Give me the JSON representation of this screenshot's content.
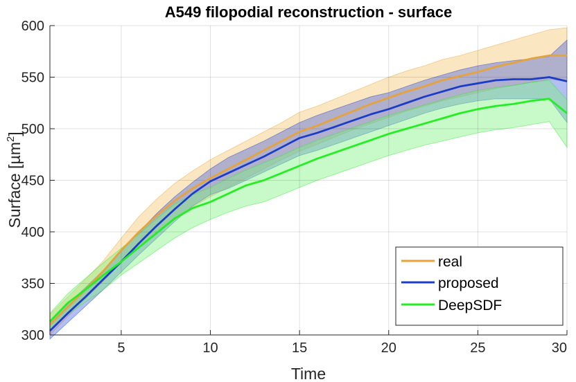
{
  "chart_data": {
    "type": "line",
    "title": "A549 filopodial reconstruction - surface",
    "xlabel": "Time",
    "ylabel_main": "Surface [µm",
    "ylabel_sup": "2",
    "ylabel_close": "]",
    "xlim": [
      1,
      30
    ],
    "ylim": [
      300,
      600
    ],
    "xticks": [
      5,
      10,
      15,
      20,
      25,
      30
    ],
    "yticks": [
      300,
      350,
      400,
      450,
      500,
      550,
      600
    ],
    "grid": true,
    "legend_position": "bottom-right",
    "x": [
      1,
      2,
      3,
      4,
      5,
      6,
      7,
      8,
      9,
      10,
      11,
      12,
      13,
      14,
      15,
      16,
      17,
      18,
      19,
      20,
      21,
      22,
      23,
      24,
      25,
      26,
      27,
      28,
      29,
      30
    ],
    "series": [
      {
        "name": "real",
        "color": "#E6A33C",
        "fill": "#F2C469",
        "values": [
          310,
          327,
          344,
          362,
          382,
          400,
          416,
          430,
          442,
          452,
          461,
          470,
          479,
          488,
          497,
          503,
          510,
          517,
          524,
          530,
          536,
          541,
          547,
          551,
          555,
          560,
          564,
          568,
          571,
          571
        ],
        "lower": [
          300,
          318,
          335,
          352,
          370,
          385,
          398,
          412,
          424,
          434,
          443,
          452,
          461,
          470,
          478,
          485,
          492,
          499,
          505,
          511,
          517,
          522,
          527,
          531,
          535,
          539,
          542,
          545,
          548,
          546
        ],
        "upper": [
          320,
          337,
          354,
          372,
          394,
          415,
          432,
          447,
          459,
          470,
          479,
          488,
          497,
          506,
          516,
          522,
          529,
          536,
          543,
          550,
          556,
          561,
          567,
          571,
          576,
          581,
          586,
          591,
          596,
          598
        ]
      },
      {
        "name": "proposed",
        "color": "#1B3CC7",
        "fill": "#4A67E0",
        "values": [
          304,
          321,
          337,
          354,
          371,
          389,
          406,
          422,
          437,
          449,
          457,
          465,
          473,
          482,
          491,
          496,
          502,
          508,
          514,
          519,
          525,
          531,
          536,
          541,
          544,
          547,
          548,
          548,
          550,
          546
        ],
        "lower": [
          296,
          312,
          328,
          344,
          361,
          378,
          394,
          410,
          425,
          436,
          442,
          450,
          458,
          466,
          474,
          479,
          485,
          491,
          497,
          503,
          509,
          515,
          520,
          524,
          527,
          529,
          529,
          529,
          529,
          506
        ],
        "upper": [
          312,
          330,
          346,
          363,
          381,
          400,
          418,
          434,
          448,
          461,
          472,
          480,
          488,
          497,
          506,
          513,
          519,
          525,
          531,
          535,
          541,
          547,
          552,
          557,
          561,
          564,
          566,
          568,
          570,
          586
        ]
      },
      {
        "name": "DeepSDF",
        "color": "#22EE22",
        "fill": "#7BF07B",
        "values": [
          313,
          331,
          344,
          358,
          371,
          385,
          399,
          413,
          423,
          429,
          437,
          445,
          450,
          457,
          464,
          471,
          477,
          483,
          489,
          495,
          500,
          505,
          510,
          515,
          519,
          522,
          524,
          527,
          529,
          515
        ],
        "lower": [
          305,
          320,
          332,
          344,
          358,
          370,
          382,
          394,
          404,
          412,
          419,
          425,
          429,
          436,
          443,
          450,
          456,
          462,
          468,
          474,
          479,
          484,
          488,
          492,
          496,
          499,
          501,
          504,
          507,
          482
        ],
        "upper": [
          321,
          340,
          355,
          370,
          384,
          398,
          413,
          427,
          436,
          443,
          452,
          460,
          467,
          474,
          482,
          489,
          495,
          501,
          507,
          513,
          518,
          523,
          528,
          533,
          537,
          540,
          542,
          545,
          547,
          528
        ]
      }
    ]
  }
}
